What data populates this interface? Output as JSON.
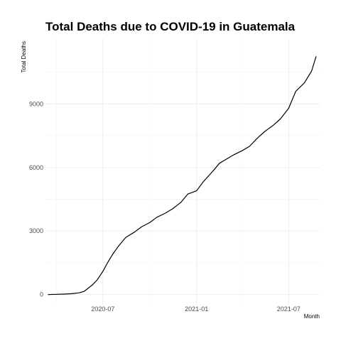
{
  "chart_data": {
    "type": "line",
    "title": "Total Deaths due to COVID-19 in Guatemala",
    "xlabel": "Month",
    "ylabel": "Total Deaths",
    "x_type": "date",
    "xlim": [
      "2020-03-10",
      "2021-08-31"
    ],
    "ylim": [
      -450,
      12100
    ],
    "x_ticks": [
      {
        "date": "2020-07-01",
        "label": "2020-07"
      },
      {
        "date": "2021-01-01",
        "label": "2021-01"
      },
      {
        "date": "2021-07-01",
        "label": "2021-07"
      }
    ],
    "x_minor_ticks": [
      "2020-04-01",
      "2020-10-01",
      "2021-04-01"
    ],
    "y_ticks": [
      0,
      3000,
      6000,
      9000
    ],
    "y_minor_ticks": [
      1500,
      4500,
      7500,
      10500
    ],
    "grid": true,
    "legend": "none",
    "line_color": "#000000",
    "x": [
      "2020-03-15",
      "2020-04-01",
      "2020-04-15",
      "2020-05-01",
      "2020-05-15",
      "2020-05-25",
      "2020-06-01",
      "2020-06-10",
      "2020-06-20",
      "2020-07-01",
      "2020-07-10",
      "2020-07-20",
      "2020-08-01",
      "2020-08-15",
      "2020-09-01",
      "2020-09-15",
      "2020-10-01",
      "2020-10-15",
      "2020-11-01",
      "2020-11-15",
      "2020-12-01",
      "2020-12-15",
      "2021-01-01",
      "2021-01-15",
      "2021-02-01",
      "2021-02-15",
      "2021-03-01",
      "2021-03-15",
      "2021-04-01",
      "2021-04-15",
      "2021-05-01",
      "2021-05-15",
      "2021-06-01",
      "2021-06-15",
      "2021-07-01",
      "2021-07-15",
      "2021-08-01",
      "2021-08-15",
      "2021-08-24"
    ],
    "y": [
      0,
      10,
      20,
      40,
      80,
      150,
      280,
      450,
      700,
      1100,
      1500,
      1900,
      2300,
      2700,
      2950,
      3200,
      3400,
      3650,
      3850,
      4050,
      4350,
      4750,
      4900,
      5350,
      5800,
      6200,
      6400,
      6600,
      6800,
      7000,
      7400,
      7700,
      8000,
      8300,
      8800,
      9600,
      10000,
      10550,
      11250
    ]
  }
}
